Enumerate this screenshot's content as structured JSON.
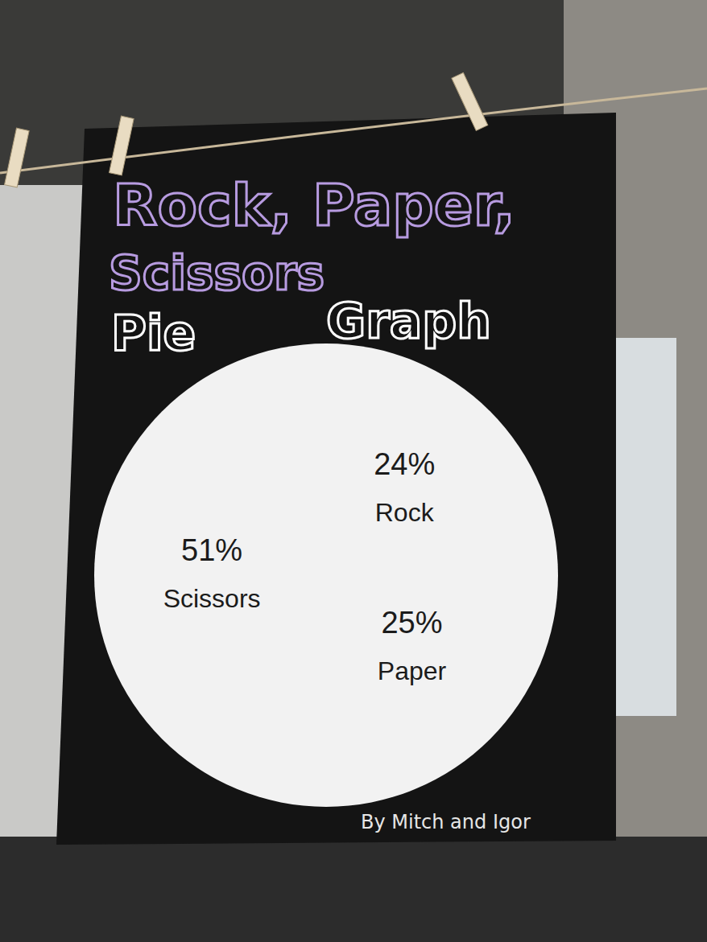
{
  "chart_data": {
    "type": "pie",
    "title": "Rock, Paper, Scissors",
    "subtitle": "Pie Graph",
    "categories": [
      "Rock",
      "Paper",
      "Scissors"
    ],
    "values": [
      24,
      25,
      51
    ],
    "value_labels": [
      "24%",
      "25%",
      "51%"
    ],
    "data_labels": true,
    "colors": [
      "#f7e23a",
      "#ff5a14",
      "#2f5fe0"
    ],
    "annotations": [
      "By Mitch and Igor"
    ]
  }
}
